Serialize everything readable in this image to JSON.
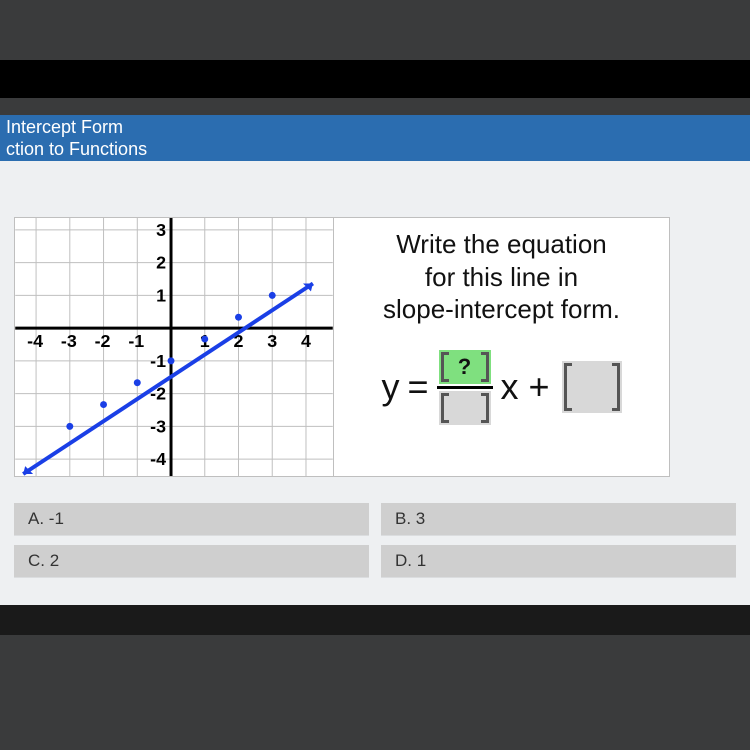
{
  "header": {
    "title_line1": "Intercept Form",
    "title_line2": "ction to Functions"
  },
  "graph": {
    "x_ticks": [
      -4,
      -3,
      -2,
      -1,
      1,
      2,
      3,
      4
    ],
    "y_ticks_pos": [
      1,
      2,
      3
    ],
    "y_ticks_neg": [
      -1,
      -2,
      -3,
      -4
    ],
    "xlim": [
      -4.6,
      4.6
    ],
    "ylim": [
      -4.4,
      3.4
    ],
    "grid_color": "#bfbfbf",
    "axis_color": "#000000",
    "line_color": "#1a3fe6",
    "line_width": 3,
    "line_points": [
      [
        -4.4,
        -4.4
      ],
      [
        4,
        1.7
      ]
    ],
    "background": "#ffffff",
    "tick_font": 16
  },
  "prompt": {
    "line1": "Write the equation",
    "line2": "for this line in",
    "line3": "slope-intercept form."
  },
  "equation": {
    "y": "y",
    "equals": "=",
    "numerator_placeholder": "?",
    "numerator_color": "#7fe07f",
    "denominator_color": "#d8d8d8",
    "x": "x",
    "plus": "+",
    "intercept_color": "#d8d8d8"
  },
  "answers": {
    "a": "A. -1",
    "b": "B. 3",
    "c": "C. 2",
    "d": "D. 1"
  },
  "colors": {
    "page_bg": "#3a3b3c",
    "header_bg": "#2b6db0",
    "panel_bg": "#eef0f2",
    "button_bg": "#cfcfcf"
  }
}
